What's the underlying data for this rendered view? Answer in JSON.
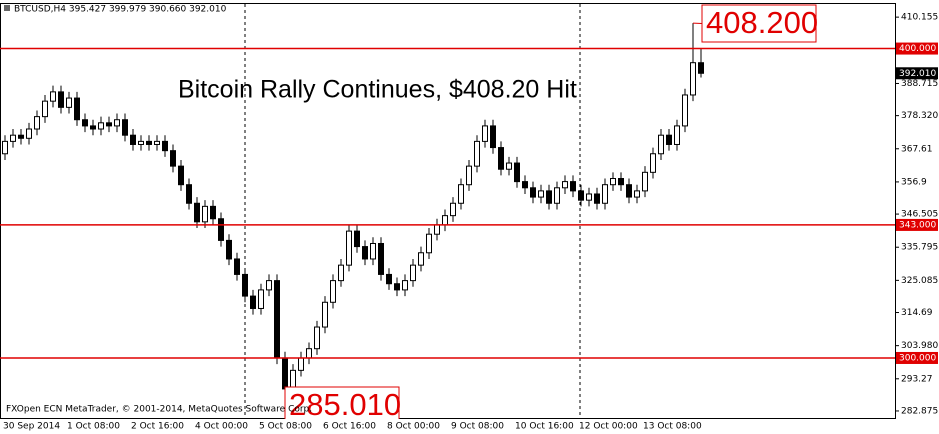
{
  "chart_data": {
    "type": "candlestick",
    "header": "BTCUSD,H4  395.427 399.979 390.660 392.010",
    "headline": "Bitcoin Rally Continues, $408.20 Hit",
    "footer": "FXOpen ECN MetaTrader, © 2001-2014, MetaQuotes Software Corp.",
    "categories": [
      "30 Sep 2014",
      null,
      null,
      null,
      null,
      null,
      null,
      null,
      "1 Oct 08:00",
      null,
      null,
      null,
      null,
      null,
      null,
      null,
      "2 Oct 16:00",
      null,
      null,
      null,
      null,
      null,
      null,
      null,
      "4 Oct 00:00",
      null,
      null,
      null,
      null,
      null,
      null,
      null,
      "5 Oct 08:00",
      null,
      null,
      null,
      null,
      null,
      null,
      null,
      "6 Oct 16:00",
      null,
      null,
      null,
      null,
      null,
      null,
      null,
      "8 Oct 00:00",
      null,
      null,
      null,
      null,
      null,
      null,
      null,
      "9 Oct 08:00",
      null,
      null,
      null,
      null,
      null,
      null,
      null,
      "10 Oct 16:00",
      null,
      null,
      null,
      null,
      null,
      null,
      null,
      "12 Oct 00:00",
      null,
      null,
      null,
      null,
      null,
      null,
      null,
      "13 Oct 08:00",
      null,
      null,
      null,
      null,
      null,
      null,
      null
    ],
    "open": [
      366,
      370,
      372,
      371,
      374,
      378,
      383,
      386,
      381,
      384,
      377,
      375,
      374,
      376,
      375,
      377,
      372,
      369,
      370,
      369,
      370,
      367,
      362,
      356,
      350,
      344,
      349,
      345,
      338,
      332,
      327,
      320,
      316,
      322,
      325,
      300,
      290,
      296,
      300,
      303,
      310,
      318,
      325,
      330,
      341,
      336,
      332,
      337,
      327,
      324,
      322,
      325,
      330,
      334,
      340,
      343,
      346,
      350,
      356,
      362,
      370,
      375,
      368,
      361,
      363,
      357,
      355,
      352,
      354,
      350,
      355,
      357,
      354,
      351,
      353,
      350,
      356,
      358,
      356,
      352,
      354,
      360,
      366,
      372,
      369,
      375,
      385,
      395.427
    ],
    "high": [
      372,
      374,
      374,
      376,
      380,
      385,
      388,
      388,
      386,
      386,
      379,
      377,
      378,
      378,
      379,
      379,
      374,
      372,
      372,
      372,
      372,
      369,
      364,
      358,
      352,
      351,
      351,
      347,
      340,
      334,
      329,
      322,
      324,
      327,
      327,
      302,
      298,
      302,
      305,
      312,
      320,
      327,
      332,
      343,
      343,
      338,
      339,
      339,
      329,
      326,
      327,
      332,
      336,
      342,
      345,
      348,
      352,
      358,
      364,
      372,
      377,
      377,
      370,
      365,
      365,
      359,
      357,
      356,
      356,
      357,
      359,
      359,
      356,
      355,
      355,
      358,
      360,
      360,
      358,
      356,
      362,
      368,
      374,
      374,
      377,
      387,
      408.2,
      399.979
    ],
    "low": [
      364,
      368,
      369,
      369,
      372,
      376,
      381,
      379,
      379,
      375,
      373,
      372,
      372,
      373,
      373,
      370,
      367,
      367,
      367,
      367,
      365,
      360,
      354,
      348,
      342,
      342,
      343,
      336,
      330,
      325,
      318,
      314,
      314,
      320,
      298,
      285.01,
      288,
      294,
      298,
      301,
      308,
      316,
      323,
      328,
      334,
      330,
      330,
      325,
      322,
      320,
      320,
      323,
      328,
      332,
      338,
      341,
      344,
      348,
      354,
      360,
      368,
      366,
      359,
      359,
      355,
      353,
      350,
      350,
      348,
      348,
      353,
      352,
      349,
      349,
      348,
      348,
      354,
      354,
      350,
      350,
      352,
      358,
      364,
      367,
      367,
      373,
      383,
      390.66
    ],
    "close": [
      370,
      372,
      371,
      374,
      378,
      383,
      386,
      381,
      384,
      377,
      375,
      374,
      376,
      375,
      377,
      372,
      369,
      370,
      369,
      370,
      367,
      362,
      356,
      350,
      344,
      349,
      345,
      338,
      332,
      327,
      320,
      316,
      322,
      325,
      300,
      290,
      296,
      300,
      303,
      310,
      318,
      325,
      330,
      341,
      336,
      332,
      337,
      327,
      324,
      322,
      325,
      330,
      334,
      340,
      343,
      346,
      350,
      356,
      362,
      370,
      375,
      368,
      361,
      363,
      357,
      355,
      352,
      354,
      350,
      355,
      357,
      354,
      351,
      353,
      350,
      356,
      358,
      356,
      352,
      354,
      360,
      366,
      372,
      369,
      375,
      385,
      395.427,
      392.01
    ],
    "up_color": "#ffffff",
    "down_color": "#000000",
    "line_color": "#000000",
    "ylim": [
      280.6,
      414.4
    ],
    "yticks": [
      410.155,
      388.715,
      {
        "value": 378.32,
        "label": "378.320"
      },
      367.61,
      356.9,
      346.505,
      335.795,
      325.085,
      314.69,
      {
        "value": 303.98,
        "label": "303.980"
      },
      293.27,
      282.875
    ],
    "levels": [
      {
        "value": 400,
        "label": "400.000"
      },
      {
        "value": 343,
        "label": "343.000"
      },
      {
        "value": 300,
        "label": "300.000"
      }
    ],
    "level_color": "#e00000",
    "current_price": {
      "value": 392.01,
      "label": "392.010"
    },
    "annotations": [
      {
        "value": 408.2,
        "label": "408.200"
      },
      {
        "value": 285.01,
        "label": "285.010"
      }
    ]
  }
}
